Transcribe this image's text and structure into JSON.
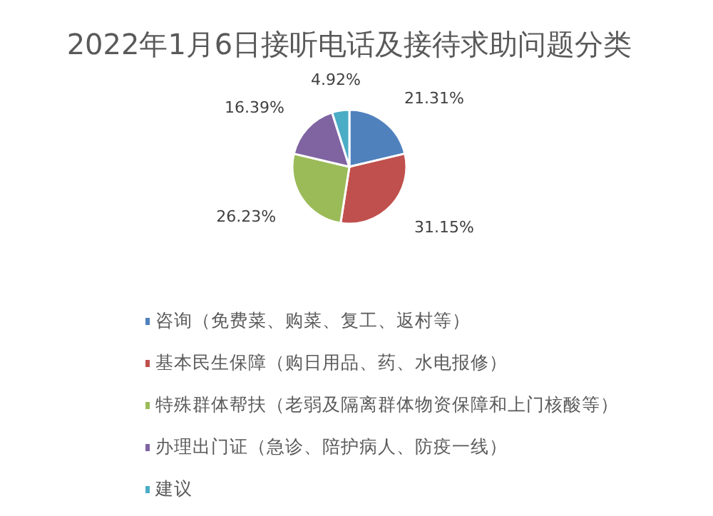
{
  "chart_data": {
    "type": "pie",
    "title": "2022年1月6日接听电话及接待求助问题分类",
    "categories": [
      "咨询（免费菜、购菜、复工、返村等）",
      "基本民生保障（购日用品、药、水电报修）",
      "特殊群体帮扶（老弱及隔离群体物资保障和上门核酸等）",
      "办理出门证（急诊、陪护病人、防疫一线）",
      "建议"
    ],
    "values": [
      21.31,
      31.15,
      26.23,
      16.39,
      4.92
    ],
    "value_labels": [
      "21.31%",
      "31.15%",
      "26.23%",
      "16.39%",
      "4.92%"
    ],
    "colors": [
      "#4f81bd",
      "#c0504d",
      "#9bbb59",
      "#8064a2",
      "#4bacc6"
    ],
    "legend": "bottom"
  }
}
